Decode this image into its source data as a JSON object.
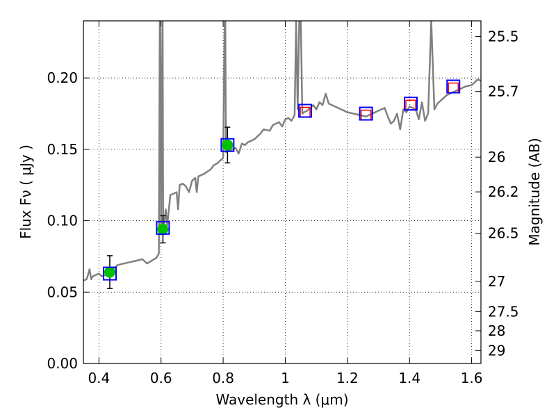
{
  "chart_data": {
    "type": "line",
    "xlabel": "Wavelength  λ (μm)",
    "ylabel": "Flux  Fν  ( μJy )",
    "y2label": "Magnitude (AB)",
    "xlim": [
      0.35,
      1.63
    ],
    "ylim": [
      0.0,
      0.24
    ],
    "x_ticks": [
      0.4,
      0.6,
      0.8,
      1.0,
      1.2,
      1.4,
      1.6
    ],
    "x_tick_labels": [
      "0.4",
      "0.6",
      "0.8",
      "1",
      "1.2",
      "1.4",
      "1.6"
    ],
    "y_ticks": [
      0.0,
      0.05,
      0.1,
      0.15,
      0.2
    ],
    "y_tick_labels": [
      "0.00",
      "0.05",
      "0.10",
      "0.15",
      "0.20"
    ],
    "y2_ticks": [
      {
        "label": "25.5",
        "flux": 0.2291
      },
      {
        "label": "25.7",
        "flux": 0.1905
      },
      {
        "label": "26",
        "flux": 0.1445
      },
      {
        "label": "26.2",
        "flux": 0.1202
      },
      {
        "label": "26.5",
        "flux": 0.0912
      },
      {
        "label": "27",
        "flux": 0.0575
      },
      {
        "label": "27.5",
        "flux": 0.0363
      },
      {
        "label": "28",
        "flux": 0.0229
      },
      {
        "label": "29",
        "flux": 0.0091
      }
    ],
    "grid": true,
    "colors": {
      "spectrum": "#808080",
      "observed_points": "#00c000",
      "model_boxes": "#0000ff",
      "red_points": "#ff0000",
      "errorbars": "#000000"
    },
    "series": [
      {
        "kind": "spectrum",
        "points": [
          [
            0.35,
            0.058
          ],
          [
            0.36,
            0.059
          ],
          [
            0.365,
            0.062
          ],
          [
            0.37,
            0.066
          ],
          [
            0.375,
            0.059
          ],
          [
            0.38,
            0.061
          ],
          [
            0.39,
            0.062
          ],
          [
            0.4,
            0.063
          ],
          [
            0.41,
            0.061
          ],
          [
            0.42,
            0.062
          ],
          [
            0.43,
            0.065
          ],
          [
            0.44,
            0.066
          ],
          [
            0.45,
            0.067
          ],
          [
            0.46,
            0.069
          ],
          [
            0.48,
            0.07
          ],
          [
            0.5,
            0.071
          ],
          [
            0.52,
            0.072
          ],
          [
            0.54,
            0.073
          ],
          [
            0.555,
            0.07
          ],
          [
            0.57,
            0.072
          ],
          [
            0.585,
            0.074
          ],
          [
            0.593,
            0.077
          ],
          [
            0.596,
            0.24
          ],
          [
            0.598,
            0.24
          ],
          [
            0.6,
            0.095
          ],
          [
            0.605,
            0.24
          ],
          [
            0.607,
            0.09
          ],
          [
            0.615,
            0.108
          ],
          [
            0.62,
            0.097
          ],
          [
            0.63,
            0.118
          ],
          [
            0.64,
            0.119
          ],
          [
            0.65,
            0.12
          ],
          [
            0.655,
            0.108
          ],
          [
            0.66,
            0.125
          ],
          [
            0.67,
            0.126
          ],
          [
            0.68,
            0.124
          ],
          [
            0.69,
            0.12
          ],
          [
            0.7,
            0.128
          ],
          [
            0.71,
            0.13
          ],
          [
            0.715,
            0.12
          ],
          [
            0.72,
            0.131
          ],
          [
            0.74,
            0.133
          ],
          [
            0.76,
            0.136
          ],
          [
            0.77,
            0.139
          ],
          [
            0.78,
            0.14
          ],
          [
            0.79,
            0.142
          ],
          [
            0.8,
            0.144
          ],
          [
            0.805,
            0.24
          ],
          [
            0.807,
            0.24
          ],
          [
            0.809,
            0.148
          ],
          [
            0.82,
            0.149
          ],
          [
            0.84,
            0.151
          ],
          [
            0.85,
            0.147
          ],
          [
            0.86,
            0.154
          ],
          [
            0.87,
            0.153
          ],
          [
            0.88,
            0.155
          ],
          [
            0.9,
            0.157
          ],
          [
            0.91,
            0.159
          ],
          [
            0.92,
            0.161
          ],
          [
            0.93,
            0.164
          ],
          [
            0.95,
            0.163
          ],
          [
            0.96,
            0.167
          ],
          [
            0.98,
            0.169
          ],
          [
            0.99,
            0.166
          ],
          [
            1.0,
            0.171
          ],
          [
            1.01,
            0.172
          ],
          [
            1.02,
            0.17
          ],
          [
            1.03,
            0.174
          ],
          [
            1.035,
            0.24
          ],
          [
            1.04,
            0.178
          ],
          [
            1.045,
            0.24
          ],
          [
            1.05,
            0.24
          ],
          [
            1.055,
            0.175
          ],
          [
            1.06,
            0.176
          ],
          [
            1.07,
            0.177
          ],
          [
            1.08,
            0.179
          ],
          [
            1.09,
            0.181
          ],
          [
            1.1,
            0.178
          ],
          [
            1.11,
            0.183
          ],
          [
            1.12,
            0.181
          ],
          [
            1.13,
            0.189
          ],
          [
            1.14,
            0.182
          ],
          [
            1.16,
            0.18
          ],
          [
            1.18,
            0.178
          ],
          [
            1.2,
            0.176
          ],
          [
            1.22,
            0.175
          ],
          [
            1.24,
            0.174
          ],
          [
            1.26,
            0.173
          ],
          [
            1.28,
            0.175
          ],
          [
            1.3,
            0.177
          ],
          [
            1.32,
            0.179
          ],
          [
            1.33,
            0.173
          ],
          [
            1.34,
            0.168
          ],
          [
            1.35,
            0.17
          ],
          [
            1.36,
            0.175
          ],
          [
            1.37,
            0.164
          ],
          [
            1.38,
            0.178
          ],
          [
            1.39,
            0.176
          ],
          [
            1.4,
            0.18
          ],
          [
            1.42,
            0.178
          ],
          [
            1.43,
            0.171
          ],
          [
            1.44,
            0.183
          ],
          [
            1.45,
            0.17
          ],
          [
            1.46,
            0.175
          ],
          [
            1.47,
            0.24
          ],
          [
            1.48,
            0.178
          ],
          [
            1.49,
            0.182
          ],
          [
            1.5,
            0.184
          ],
          [
            1.51,
            0.186
          ],
          [
            1.52,
            0.188
          ],
          [
            1.54,
            0.19
          ],
          [
            1.56,
            0.192
          ],
          [
            1.58,
            0.194
          ],
          [
            1.6,
            0.195
          ],
          [
            1.61,
            0.197
          ],
          [
            1.62,
            0.199
          ],
          [
            1.63,
            0.198
          ]
        ]
      },
      {
        "kind": "observed",
        "points": [
          {
            "x": 0.435,
            "y": 0.064,
            "err": 0.0115
          },
          {
            "x": 0.606,
            "y": 0.094,
            "err": 0.0095
          },
          {
            "x": 0.814,
            "y": 0.153,
            "err": 0.0125
          }
        ]
      },
      {
        "kind": "model_box",
        "points": [
          {
            "x": 0.435,
            "y": 0.063
          },
          {
            "x": 0.606,
            "y": 0.095
          },
          {
            "x": 0.814,
            "y": 0.153
          },
          {
            "x": 1.064,
            "y": 0.177
          },
          {
            "x": 1.26,
            "y": 0.175
          },
          {
            "x": 1.404,
            "y": 0.182
          },
          {
            "x": 1.541,
            "y": 0.194
          }
        ]
      },
      {
        "kind": "red_box",
        "points": [
          {
            "x": 1.064,
            "y": 0.176
          },
          {
            "x": 1.26,
            "y": 0.174
          },
          {
            "x": 1.404,
            "y": 0.181
          },
          {
            "x": 1.541,
            "y": 0.193
          }
        ]
      }
    ]
  }
}
